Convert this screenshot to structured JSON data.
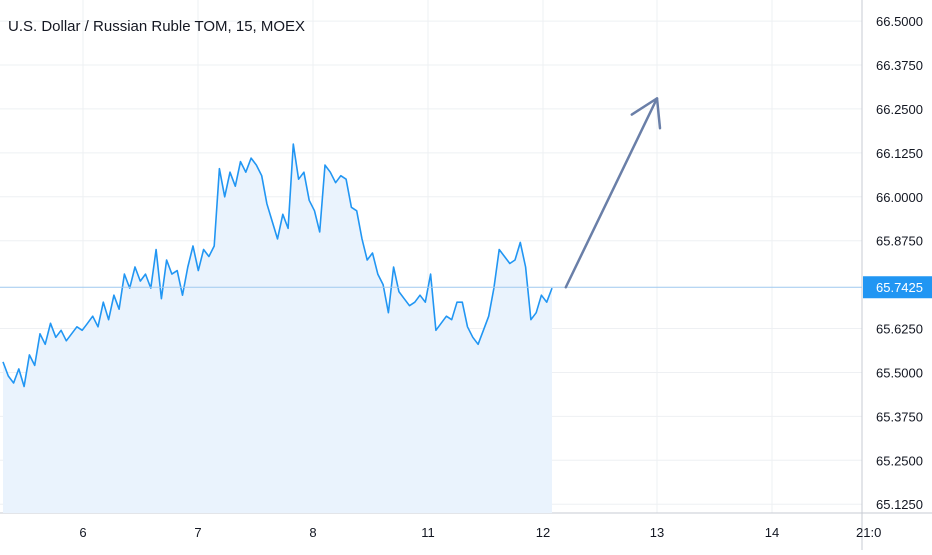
{
  "chart_data": {
    "type": "area",
    "title": "U.S. Dollar / Russian Ruble TOM, 15, MOEX",
    "xlabel": "",
    "ylabel": "",
    "x_ticks": [
      "6",
      "7",
      "8",
      "11",
      "12",
      "13",
      "14",
      "21:0"
    ],
    "y_ticks": [
      "66.5000",
      "66.3750",
      "66.2500",
      "66.1250",
      "66.0000",
      "65.8750",
      "65.7425",
      "65.6250",
      "65.5000",
      "65.3750",
      "65.2500",
      "65.1250"
    ],
    "ylim": [
      65.1,
      66.56
    ],
    "last_price": 65.7425,
    "last_price_label": "65.7425",
    "grid": true,
    "colors": {
      "line": "#2196f3",
      "fill": "#eaf3fd",
      "price_box": "#2196f3",
      "arrow": "#6a7fa8",
      "grid": "#eef0f3"
    },
    "series": [
      {
        "values": [
          65.53,
          65.49,
          65.47,
          65.51,
          65.46,
          65.55,
          65.52,
          65.61,
          65.58,
          65.64,
          65.6,
          65.62,
          65.59,
          65.61,
          65.63,
          65.62,
          65.64,
          65.66,
          65.63,
          65.7,
          65.65,
          65.72,
          65.68,
          65.78,
          65.74,
          65.8,
          65.76,
          65.78,
          65.74,
          65.85,
          65.71,
          65.82,
          65.78,
          65.79,
          65.72,
          65.8,
          65.86,
          65.79,
          65.85,
          65.83,
          65.86,
          66.08,
          66.0,
          66.07,
          66.03,
          66.1,
          66.07,
          66.11,
          66.09,
          66.06,
          65.98,
          65.93,
          65.88,
          65.95,
          65.91,
          66.15,
          66.05,
          66.07,
          65.99,
          65.96,
          65.9,
          66.09,
          66.07,
          66.04,
          66.06,
          66.05,
          65.97,
          65.96,
          65.88,
          65.82,
          65.84,
          65.78,
          65.75,
          65.67,
          65.8,
          65.73,
          65.71,
          65.69,
          65.7,
          65.72,
          65.7,
          65.78,
          65.62,
          65.64,
          65.66,
          65.65,
          65.7,
          65.7,
          65.63,
          65.6,
          65.58,
          65.62,
          65.66,
          65.74,
          65.85,
          65.83,
          65.81,
          65.82,
          65.87,
          65.8,
          65.65,
          65.67,
          65.72,
          65.7,
          65.74
        ]
      }
    ],
    "annotation": {
      "type": "arrow",
      "from": {
        "x": 12.2,
        "y": 65.7425
      },
      "to": {
        "x": 13,
        "y": 66.28
      }
    }
  }
}
